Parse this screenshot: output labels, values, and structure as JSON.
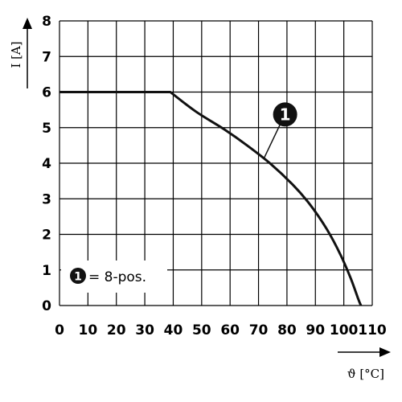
{
  "chart_data": {
    "type": "line",
    "xlabel": "ϑ [°C]",
    "ylabel": "I [A]",
    "xlim": [
      0,
      110
    ],
    "ylim": [
      0,
      8
    ],
    "xticks": [
      0,
      10,
      20,
      30,
      40,
      50,
      60,
      70,
      80,
      90,
      100,
      110
    ],
    "yticks": [
      0,
      1,
      2,
      3,
      4,
      5,
      6,
      7,
      8
    ],
    "grid": true,
    "series": [
      {
        "marker": "1",
        "color": "#111111",
        "x": [
          0,
          39,
          48,
          58,
          66,
          74,
          82,
          88,
          94,
          99,
          102.5,
          105,
          106
        ],
        "y": [
          6,
          6,
          5.45,
          4.95,
          4.5,
          4.0,
          3.4,
          2.85,
          2.15,
          1.4,
          0.75,
          0.2,
          0
        ]
      }
    ],
    "callout": {
      "label": "1",
      "x": 72,
      "y": 4.15
    },
    "legend": {
      "badge": "1",
      "text": "= 8-pos.",
      "position": "bottom-left"
    }
  }
}
